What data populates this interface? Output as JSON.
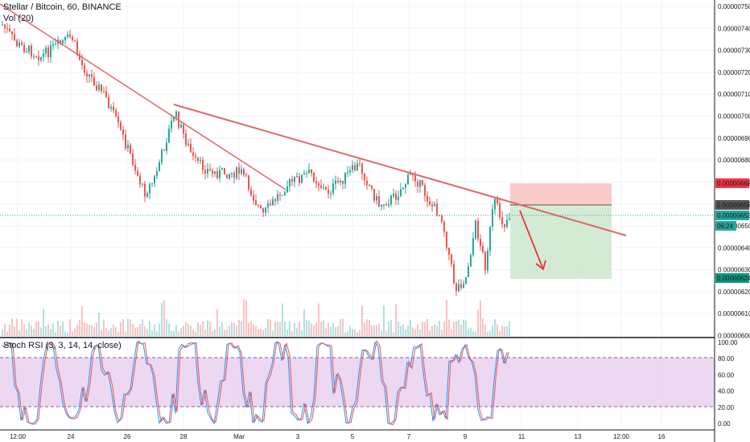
{
  "header": {
    "symbol_title": "Stellar / Bitcoin, 60, BINANCE",
    "volume_label": "Vol (20)",
    "indicator_label": "Stoch RSI (3, 3, 14, 14, close)"
  },
  "price_axis": {
    "ticks": [
      "0.00000750",
      "0.00000740",
      "0.00000730",
      "0.00000720",
      "0.00000710",
      "0.00000700",
      "0.00000690",
      "0.00000680",
      "0.00000670",
      "0.00000660",
      "0.00000650",
      "0.00000640",
      "0.00000630",
      "0.00000620",
      "0.00000610",
      "0.00000600"
    ],
    "badges": [
      {
        "name": "stop-price",
        "text": "0.00000668",
        "color": "#f23645"
      },
      {
        "name": "entry-price",
        "text": "0.00000658",
        "color": "#555555"
      },
      {
        "name": "current-price",
        "text": "0.00000653",
        "color": "#26a69a"
      },
      {
        "name": "countdown",
        "text": "06:24",
        "color": "#26a69a"
      },
      {
        "name": "target-price",
        "text": "0.00000624",
        "color": "#089981"
      }
    ]
  },
  "rsi_axis": {
    "ticks": [
      "100.00",
      "80.00",
      "60.00",
      "40.00",
      "20.00",
      "0.00"
    ]
  },
  "time_axis": {
    "labels": [
      "12:00",
      "24",
      "26",
      "28",
      "Mar",
      "3",
      "5",
      "7",
      "9",
      "11",
      "13",
      "12:00",
      "16"
    ]
  },
  "colors": {
    "up": "#26a69a",
    "down": "#ef5350",
    "trendline": "#e06666",
    "rsi_band": "#e1bee7",
    "stop_zone": "#f9b8b8",
    "target_zone": "#c8e6c9"
  },
  "chart_data": {
    "type": "candlestick",
    "title": "Stellar / Bitcoin, 60, BINANCE",
    "ylim": [
      5.98e-06,
      7.52e-06
    ],
    "trade_setup": {
      "entry": 6.58e-06,
      "stop": 6.68e-06,
      "target": 6.24e-06
    },
    "last_price": 6.53e-06,
    "stoch_rsi_bands": [
      20,
      80
    ]
  }
}
